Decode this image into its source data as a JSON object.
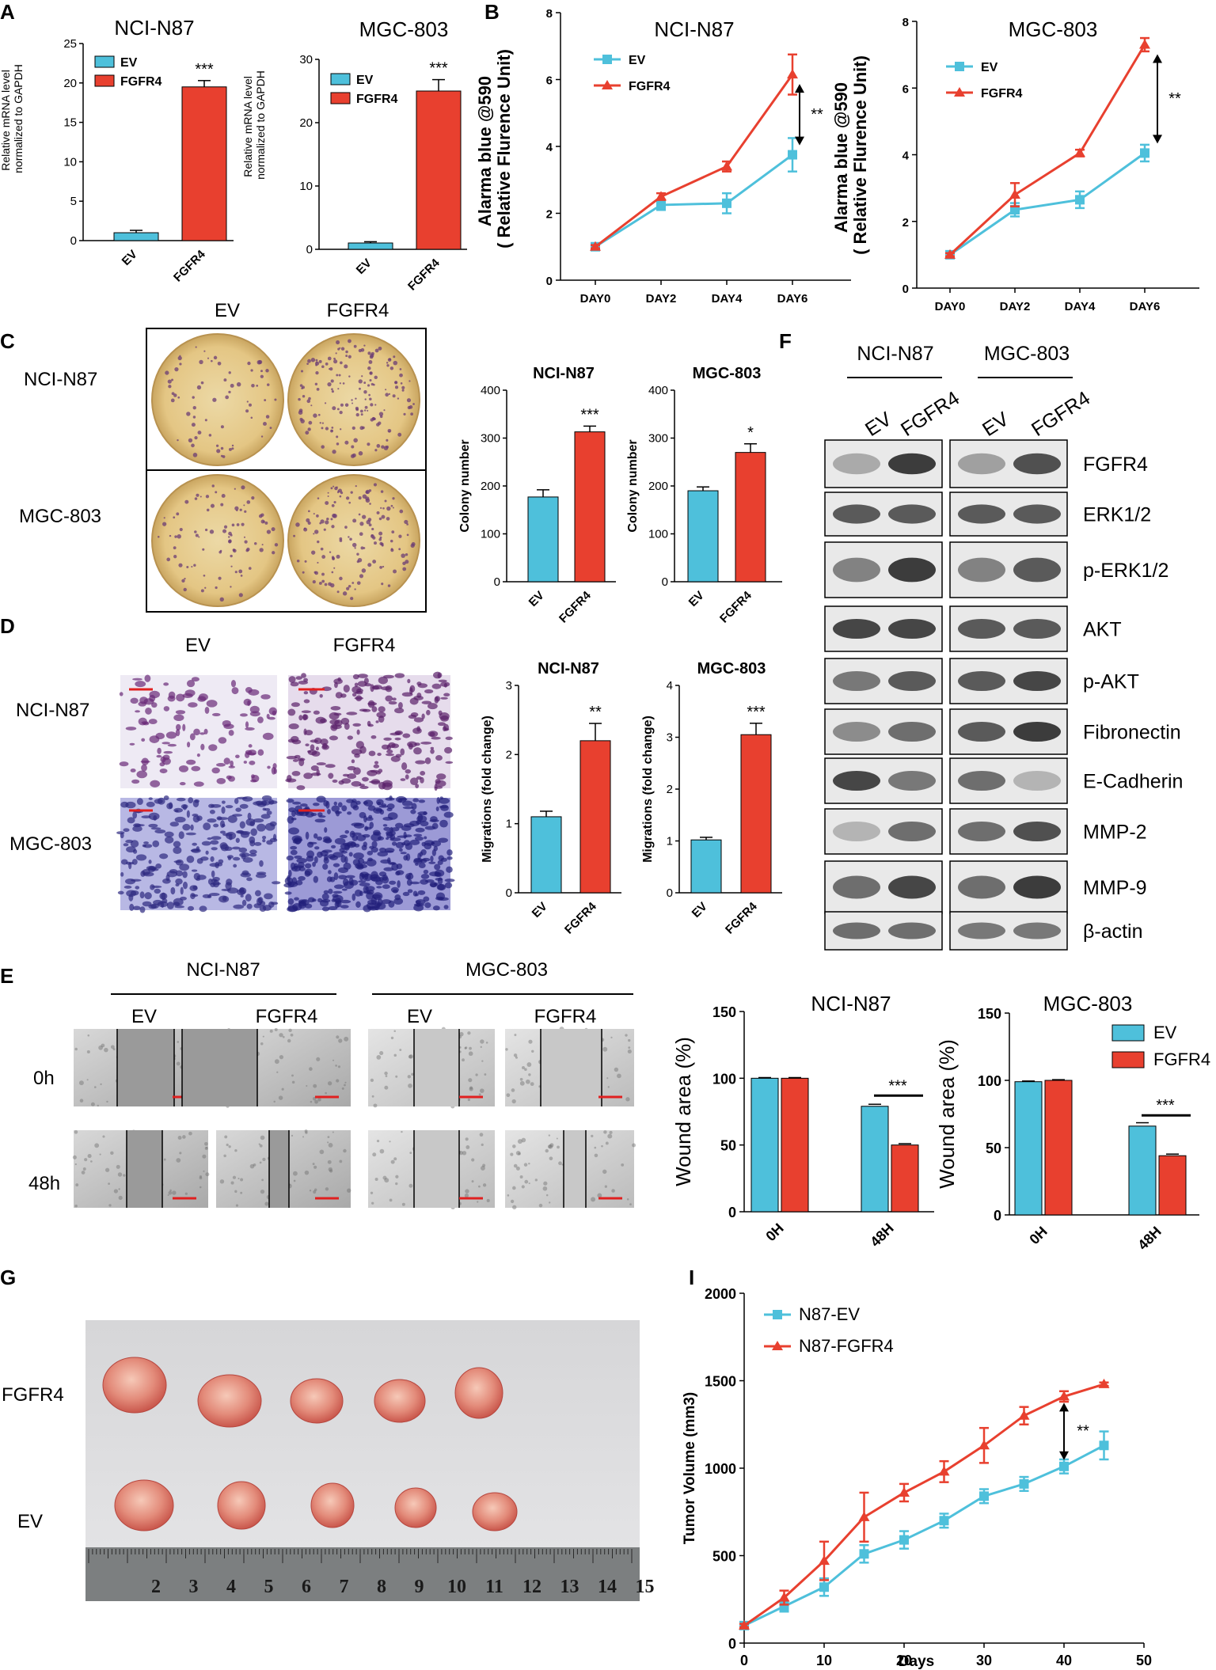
{
  "panels": {
    "A": {
      "letter": "A",
      "ylabel": "Relative mRNA level normalized to GAPDH",
      "ylabel_lines": [
        "Relative mRNA level",
        "normalized to GAPDH"
      ],
      "legend": [
        "EV",
        "FGFR4"
      ]
    },
    "B": {
      "letter": "B",
      "ylabel_lines": [
        "Alarma blue @590",
        "( Relative Flurence Unit)"
      ],
      "legend": [
        "EV",
        "FGFR4"
      ]
    },
    "C": {
      "letter": "C",
      "col_labels": [
        "EV",
        "FGFR4"
      ],
      "row_labels": [
        "NCI-N87",
        "MGC-803"
      ],
      "ylabel": "Colony number"
    },
    "D": {
      "letter": "D",
      "col_labels": [
        "EV",
        "FGFR4"
      ],
      "row_labels": [
        "NCI-N87",
        "MGC-803"
      ],
      "ylabel": "Migrations (fold change)"
    },
    "E": {
      "letter": "E",
      "groups": [
        "NCI-N87",
        "MGC-803"
      ],
      "col_labels": [
        "EV",
        "FGFR4",
        "EV",
        "FGFR4"
      ],
      "row_labels": [
        "0h",
        "48h"
      ],
      "ylabel": "Wound area (%)",
      "legend": [
        "EV",
        "FGFR4"
      ]
    },
    "F": {
      "letter": "F",
      "groups": [
        "NCI-N87",
        "MGC-803"
      ],
      "lane_labels": [
        "EV",
        "FGFR4",
        "EV",
        "FGFR4"
      ],
      "bands": [
        "FGFR4",
        "ERK1/2",
        "p-ERK1/2",
        "AKT",
        "p-AKT",
        "Fibronectin",
        "E-Cadherin",
        "MMP-2",
        "MMP-9",
        "β-actin"
      ]
    },
    "G": {
      "letter": "G",
      "row_labels": [
        "FGFR4",
        "EV"
      ],
      "ruler_numbers": [
        "2",
        "3",
        "4",
        "5",
        "6",
        "7",
        "8",
        "9",
        "10",
        "11",
        "12",
        "13",
        "14",
        "15"
      ]
    },
    "I": {
      "letter": "I",
      "legend": [
        "N87-EV",
        "N87-FGFR4"
      ]
    }
  },
  "colors": {
    "ev": "#4EC0DB",
    "fgfr4": "#E8402F"
  },
  "chart_data": [
    {
      "id": "A1",
      "type": "bar",
      "title": "NCI-N87",
      "categories": [
        "EV",
        "FGFR4"
      ],
      "values": [
        1.0,
        19.5
      ],
      "errors": [
        0.3,
        0.8
      ],
      "ylim": [
        0,
        25
      ],
      "yticks": [
        0,
        5,
        10,
        15,
        20,
        25
      ],
      "significance": "***"
    },
    {
      "id": "A2",
      "type": "bar",
      "title": "MGC-803",
      "categories": [
        "EV",
        "FGFR4"
      ],
      "values": [
        1.0,
        25.0
      ],
      "errors": [
        0.2,
        1.8
      ],
      "ylim": [
        0,
        30
      ],
      "yticks": [
        0,
        10,
        20,
        30
      ],
      "significance": "***"
    },
    {
      "id": "B1",
      "type": "line",
      "title": "NCI-N87",
      "x": [
        "DAY0",
        "DAY2",
        "DAY4",
        "DAY6"
      ],
      "ylim": [
        0,
        8
      ],
      "yticks": [
        0,
        2,
        4,
        6,
        8
      ],
      "series": [
        {
          "name": "EV",
          "values": [
            1.0,
            2.25,
            2.3,
            3.75
          ],
          "errors": [
            0.05,
            0.15,
            0.3,
            0.5
          ]
        },
        {
          "name": "FGFR4",
          "values": [
            1.0,
            2.5,
            3.4,
            6.15
          ],
          "errors": [
            0.05,
            0.1,
            0.15,
            0.6
          ]
        }
      ],
      "significance": "**"
    },
    {
      "id": "B2",
      "type": "line",
      "title": "MGC-803",
      "x": [
        "DAY0",
        "DAY2",
        "DAY4",
        "DAY6"
      ],
      "ylim": [
        0,
        8
      ],
      "yticks": [
        0,
        2,
        4,
        6,
        8
      ],
      "series": [
        {
          "name": "EV",
          "values": [
            1.0,
            2.35,
            2.65,
            4.05
          ],
          "errors": [
            0.05,
            0.2,
            0.25,
            0.25
          ]
        },
        {
          "name": "FGFR4",
          "values": [
            1.0,
            2.8,
            4.05,
            7.3
          ],
          "errors": [
            0.05,
            0.35,
            0.1,
            0.2
          ]
        }
      ],
      "significance": "**"
    },
    {
      "id": "C1",
      "type": "bar",
      "title": "NCI-N87",
      "categories": [
        "EV",
        "FGFR4"
      ],
      "values": [
        177,
        313
      ],
      "errors": [
        15,
        12
      ],
      "ylim": [
        0,
        400
      ],
      "yticks": [
        0,
        100,
        200,
        300,
        400
      ],
      "significance": "***"
    },
    {
      "id": "C2",
      "type": "bar",
      "title": "MGC-803",
      "categories": [
        "EV",
        "FGFR4"
      ],
      "values": [
        190,
        270
      ],
      "errors": [
        8,
        18
      ],
      "ylim": [
        0,
        400
      ],
      "yticks": [
        0,
        100,
        200,
        300,
        400
      ],
      "significance": "*"
    },
    {
      "id": "D1",
      "type": "bar",
      "title": "NCI-N87",
      "categories": [
        "EV",
        "FGFR4"
      ],
      "values": [
        1.1,
        2.2
      ],
      "errors": [
        0.08,
        0.25
      ],
      "ylim": [
        0,
        3
      ],
      "yticks": [
        0,
        1,
        2,
        3
      ],
      "significance": "**"
    },
    {
      "id": "D2",
      "type": "bar",
      "title": "MGC-803",
      "categories": [
        "EV",
        "FGFR4"
      ],
      "values": [
        1.02,
        3.05
      ],
      "errors": [
        0.05,
        0.22
      ],
      "ylim": [
        0,
        4
      ],
      "yticks": [
        0,
        1,
        2,
        3,
        4
      ],
      "significance": "***"
    },
    {
      "id": "E1",
      "type": "bar",
      "title": "NCI-N87",
      "categories": [
        "0H",
        "48H"
      ],
      "ylim": [
        0,
        150
      ],
      "yticks": [
        0,
        50,
        100,
        150
      ],
      "series": [
        {
          "name": "EV",
          "values": [
            100,
            79
          ],
          "errors": [
            0.5,
            1.5
          ]
        },
        {
          "name": "FGFR4",
          "values": [
            100,
            50
          ],
          "errors": [
            0.5,
            1.0
          ]
        }
      ],
      "significance": "***"
    },
    {
      "id": "E2",
      "type": "bar",
      "title": "MGC-803",
      "categories": [
        "0H",
        "48H"
      ],
      "ylim": [
        0,
        150
      ],
      "yticks": [
        0,
        50,
        100,
        150
      ],
      "series": [
        {
          "name": "EV",
          "values": [
            99,
            66
          ],
          "errors": [
            0.5,
            2.5
          ]
        },
        {
          "name": "FGFR4",
          "values": [
            100,
            44
          ],
          "errors": [
            0.5,
            1.2
          ]
        }
      ],
      "significance": "***"
    },
    {
      "id": "I",
      "type": "line",
      "xlabel": "Days",
      "ylabel": "Tumor Volume (mm3)",
      "xlim": [
        0,
        50
      ],
      "ylim": [
        0,
        2000
      ],
      "xticks": [
        0,
        10,
        20,
        30,
        40,
        50
      ],
      "yticks": [
        0,
        500,
        1000,
        1500,
        2000
      ],
      "x": [
        0,
        5,
        10,
        15,
        20,
        25,
        30,
        35,
        40,
        45
      ],
      "series": [
        {
          "name": "N87-EV",
          "values": [
            100,
            210,
            320,
            510,
            590,
            700,
            840,
            910,
            1010,
            1130
          ],
          "errors": [
            10,
            30,
            50,
            50,
            50,
            40,
            40,
            40,
            40,
            80
          ]
        },
        {
          "name": "N87-FGFR4",
          "values": [
            100,
            260,
            470,
            720,
            860,
            980,
            1130,
            1300,
            1410,
            1480
          ],
          "errors": [
            10,
            40,
            110,
            140,
            50,
            60,
            100,
            50,
            30,
            10
          ]
        }
      ],
      "significance": "**"
    }
  ]
}
